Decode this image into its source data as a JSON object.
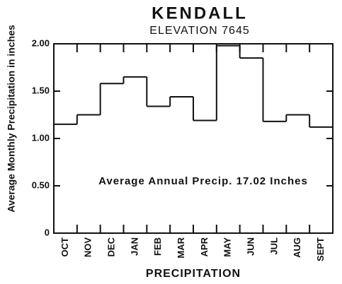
{
  "chart_data": {
    "type": "step",
    "title": "KENDALL",
    "subtitle": "ELEVATION 7645",
    "annotation": "Average Annual Precip. 17.02 Inches",
    "xlabel": "PRECIPITATION",
    "ylabel": "Average Monthly Precipitation in inches",
    "categories": [
      "OCT",
      "NOV",
      "DEC",
      "JAN",
      "FEB",
      "MAR",
      "APR",
      "MAY",
      "JUN",
      "JUL",
      "AUG",
      "SEPT"
    ],
    "values": [
      1.15,
      1.25,
      1.58,
      1.65,
      1.34,
      1.44,
      1.19,
      1.98,
      1.85,
      1.18,
      1.25,
      1.12
    ],
    "color": "#111111",
    "ylim": [
      0,
      2
    ],
    "yticks": [
      0,
      {
        "value": 0.5,
        "label": "0.50"
      },
      {
        "value": 1,
        "label": "1.00"
      },
      {
        "value": 1.5,
        "label": "1.50"
      },
      {
        "value": 2,
        "label": "2.00"
      }
    ],
    "grid": false
  }
}
